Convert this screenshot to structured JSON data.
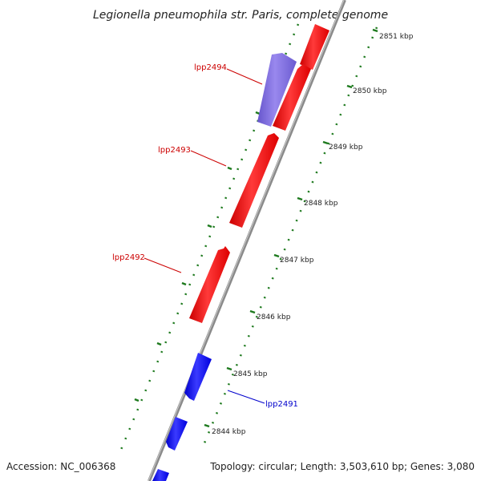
{
  "title": "Legionella pneumophila str. Paris, complete genome",
  "footer": {
    "accession": "Accession: NC_006368",
    "topology": "Topology: circular; Length: 3,503,610 bp; Genes: 3,080"
  },
  "ruler": {
    "ticks": [
      {
        "kbp": 2851,
        "label": "2851 kbp"
      },
      {
        "kbp": 2850,
        "label": "2850 kbp"
      },
      {
        "kbp": 2849,
        "label": "2849 kbp"
      },
      {
        "kbp": 2848,
        "label": "2848 kbp"
      },
      {
        "kbp": 2847,
        "label": "2847 kbp"
      },
      {
        "kbp": 2846,
        "label": "2846 kbp"
      },
      {
        "kbp": 2845,
        "label": "2845 kbp"
      },
      {
        "kbp": 2844,
        "label": "2844 kbp"
      }
    ]
  },
  "genes": [
    {
      "id": "lpp2494",
      "label": "lpp2494",
      "strand": "plus",
      "color": "#7b68d9"
    },
    {
      "id": "lpp2493",
      "label": "lpp2493",
      "strand": "plus",
      "color": "#ee0000"
    },
    {
      "id": "lpp2492",
      "label": "lpp2492",
      "strand": "plus",
      "color": "#ee0000"
    },
    {
      "id": "lpp2491",
      "label": "lpp2491",
      "strand": "minus",
      "color": "#1010ee"
    }
  ],
  "colors": {
    "backbone": "#8a8a8a",
    "tick": "#1e7a1e",
    "forward_gene": "#ee0000",
    "reverse_gene": "#1010ee",
    "highlight_gene": "#7b68d9",
    "label_forward": "#cc0000",
    "label_reverse": "#0000cc"
  }
}
